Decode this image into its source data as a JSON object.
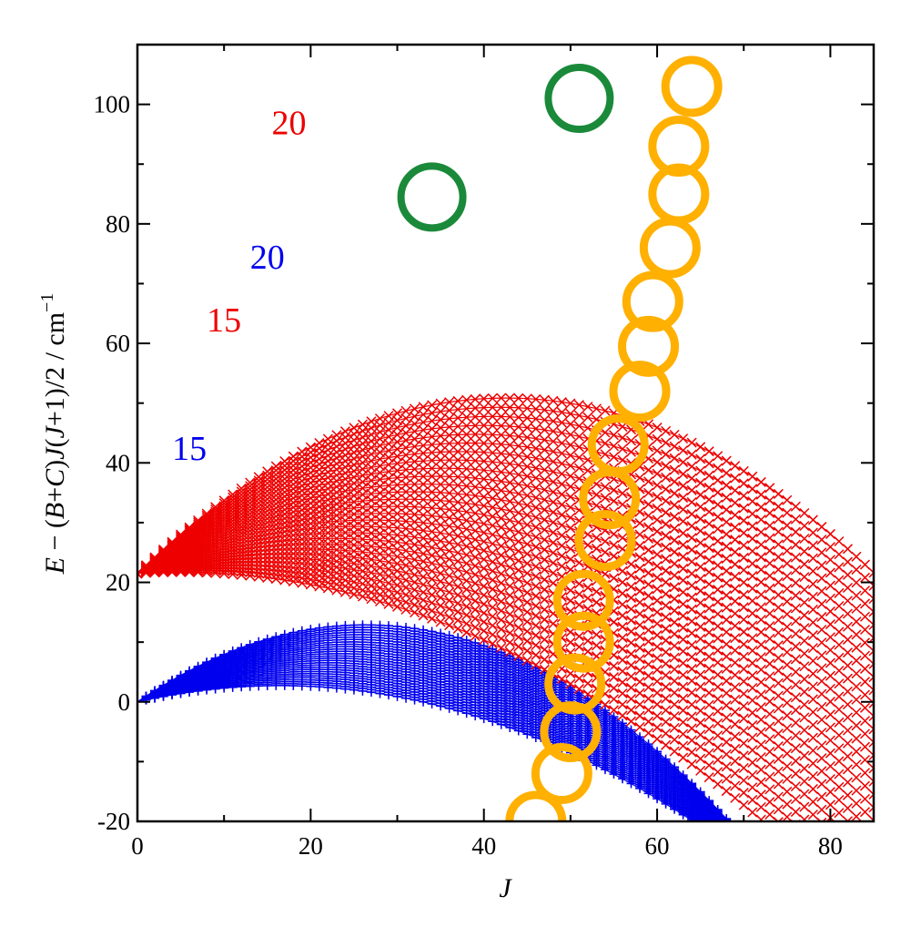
{
  "chart_data": {
    "type": "scatter",
    "title": "",
    "xlabel": "J",
    "ylabel_parts": {
      "e": "E",
      "minus": " − (",
      "b": "B",
      "plus": "+",
      "c": "C",
      "close": ")",
      "j1": "J",
      "open2": "(",
      "j2": "J",
      "tail": "+1)/2  /  cm",
      "sup": "−1"
    },
    "xlim": [
      0,
      85
    ],
    "ylim": [
      -20,
      110
    ],
    "xticks": [
      0,
      20,
      40,
      60,
      80
    ],
    "xtick_labels": [
      "0",
      "20",
      "40",
      "60",
      "80"
    ],
    "yticks": [
      -20,
      0,
      20,
      40,
      60,
      80,
      100
    ],
    "ytick_labels": [
      "-20",
      "0",
      "20",
      "40",
      "60",
      "80",
      "100"
    ],
    "grid": false,
    "colors": {
      "blue": "#0000ee",
      "red": "#ee0000",
      "green": "#1a8a3a",
      "orange": "#ffb000"
    },
    "blue_family": {
      "name": "blue + series",
      "marker": "plus",
      "color": "#0000ee",
      "origin": [
        0,
        0
      ],
      "slope_range": [
        0.33,
        0.98
      ],
      "count": 28,
      "curvature_start": 0.01,
      "curvature_step": 0.00032
    },
    "red_family": {
      "name": "red × series",
      "marker": "x",
      "color": "#ee0000",
      "origin": [
        0,
        21.5
      ],
      "slope_range": [
        0.09,
        1.38
      ],
      "count": 28,
      "curvature_start": 0.0092,
      "curvature_step": 0.00026
    },
    "series_labels": [
      {
        "text": "20",
        "color": "#ee0000",
        "x": 17.5,
        "y": 95
      },
      {
        "text": "20",
        "color": "#0000ee",
        "x": 15,
        "y": 72.5
      },
      {
        "text": "15",
        "color": "#ee0000",
        "x": 10,
        "y": 62
      },
      {
        "text": "15",
        "color": "#0000ee",
        "x": 6,
        "y": 40.5
      }
    ],
    "green_circles": [
      {
        "x": 34,
        "y": 84.5
      },
      {
        "x": 51,
        "y": 101
      }
    ],
    "orange_circles": [
      {
        "x": 46,
        "y": -20
      },
      {
        "x": 49,
        "y": -12
      },
      {
        "x": 50,
        "y": -5
      },
      {
        "x": 50.5,
        "y": 3
      },
      {
        "x": 51.5,
        "y": 10
      },
      {
        "x": 51.5,
        "y": 17
      },
      {
        "x": 54,
        "y": 27
      },
      {
        "x": 54.5,
        "y": 34
      },
      {
        "x": 55.5,
        "y": 43
      },
      {
        "x": 58,
        "y": 52
      },
      {
        "x": 59,
        "y": 59.5
      },
      {
        "x": 59.5,
        "y": 67
      },
      {
        "x": 61.5,
        "y": 76
      },
      {
        "x": 62.5,
        "y": 85
      },
      {
        "x": 62.5,
        "y": 93
      },
      {
        "x": 64,
        "y": 103
      }
    ]
  }
}
